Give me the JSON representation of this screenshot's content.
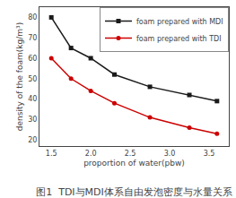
{
  "chart_data": {
    "type": "line",
    "title": "图1  TDI与MDI体系自由发泡密度与水量关系",
    "x_label": "proportion of water(pbw)",
    "y_label": "density of the foam(kg/m³)",
    "x": [
      1.5,
      1.75,
      2.0,
      2.3,
      2.75,
      3.25,
      3.6
    ],
    "series": [
      {
        "name": "foam prepared with MDI",
        "color": "#1a1a1a",
        "marker": "square",
        "values": [
          80,
          65,
          60,
          52,
          46,
          42,
          39
        ]
      },
      {
        "name": "foam prepared with TDI",
        "color": "#cc0000",
        "marker": "circle",
        "values": [
          60,
          50,
          44,
          38,
          31,
          26,
          23
        ]
      }
    ],
    "xlim": [
      1.35,
      3.75
    ],
    "ylim": [
      17,
      85
    ],
    "xticks": [
      1.5,
      {
        "value": 2.0,
        "label": "2.0"
      },
      2.5,
      {
        "value": 3.0,
        "label": "3.0"
      },
      3.5
    ],
    "yticks": [
      20,
      30,
      40,
      50,
      60,
      70,
      80
    ],
    "grid": false,
    "legend": "upper right"
  }
}
